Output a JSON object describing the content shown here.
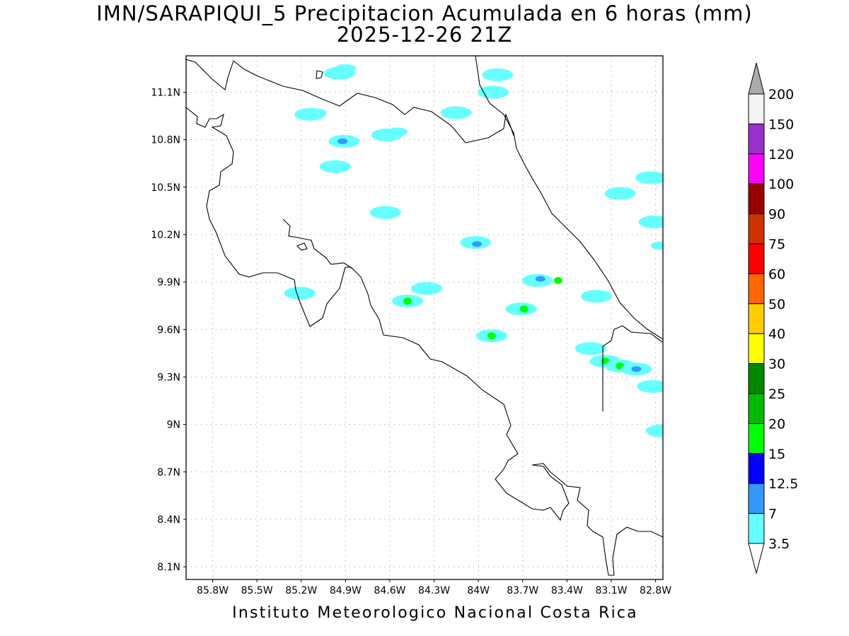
{
  "header": {
    "title_line1": "IMN/SARAPIQUI_5 Precipitacion Acumulada en 6 horas (mm)",
    "title_line2": "2025-12-26 21Z"
  },
  "footer": {
    "credit": "Instituto Meteorologico Nacional Costa Rica"
  },
  "map": {
    "lon_range": [
      -85.98,
      -82.75
    ],
    "lat_range": [
      8.02,
      11.33
    ],
    "lat_ticks": [
      "11.1N",
      "10.8N",
      "10.5N",
      "10.2N",
      "9.9N",
      "9.6N",
      "9.3N",
      "9N",
      "8.7N",
      "8.4N",
      "8.1N"
    ],
    "lon_ticks": [
      "85.8W",
      "85.5W",
      "85.2W",
      "84.9W",
      "84.6W",
      "84.3W",
      "84W",
      "83.7W",
      "83.4W",
      "83.1W",
      "82.8W"
    ],
    "grid": "dotted"
  },
  "legend": {
    "labels": [
      "200",
      "150",
      "120",
      "100",
      "90",
      "75",
      "60",
      "50",
      "40",
      "30",
      "25",
      "20",
      "15",
      "12.5",
      "7",
      "3.5"
    ],
    "colors": [
      "#f4f4f4",
      "#9932cc",
      "#ff00ff",
      "#990000",
      "#cc3300",
      "#ff0000",
      "#ff6600",
      "#ffcc00",
      "#ffff00",
      "#008800",
      "#00bb00",
      "#00ff00",
      "#0000ff",
      "#3399ff",
      "#66ffff"
    ],
    "over_color": "#aaaaaa",
    "under_color": "#ffffff"
  },
  "precip_cells": [
    {
      "lon": -84.94,
      "lat": 11.22,
      "level": "3.5"
    },
    {
      "lon": -84.9,
      "lat": 11.25,
      "level": "7"
    },
    {
      "lon": -83.87,
      "lat": 11.21,
      "level": "3.5"
    },
    {
      "lon": -83.9,
      "lat": 11.1,
      "level": "3.5"
    },
    {
      "lon": -85.14,
      "lat": 10.96,
      "level": "3.5"
    },
    {
      "lon": -85.1,
      "lat": 10.97,
      "level": "7"
    },
    {
      "lon": -84.91,
      "lat": 10.79,
      "level": "3.5"
    },
    {
      "lon": -84.92,
      "lat": 10.79,
      "level": "12.5"
    },
    {
      "lon": -84.62,
      "lat": 10.83,
      "level": "3.5"
    },
    {
      "lon": -84.55,
      "lat": 10.85,
      "level": "7"
    },
    {
      "lon": -84.15,
      "lat": 10.97,
      "level": "3.5"
    },
    {
      "lon": -84.97,
      "lat": 10.63,
      "level": "3.5"
    },
    {
      "lon": -84.63,
      "lat": 10.34,
      "level": "3.5"
    },
    {
      "lon": -83.04,
      "lat": 10.46,
      "level": "3.5"
    },
    {
      "lon": -82.83,
      "lat": 10.56,
      "level": "3.5"
    },
    {
      "lon": -82.81,
      "lat": 10.28,
      "level": "3.5"
    },
    {
      "lon": -82.76,
      "lat": 10.13,
      "level": "7"
    },
    {
      "lon": -84.02,
      "lat": 10.15,
      "level": "3.5"
    },
    {
      "lon": -84.01,
      "lat": 10.14,
      "level": "12.5"
    },
    {
      "lon": -83.6,
      "lat": 9.91,
      "level": "3.5"
    },
    {
      "lon": -83.58,
      "lat": 9.92,
      "level": "12.5"
    },
    {
      "lon": -83.46,
      "lat": 9.91,
      "level": "20"
    },
    {
      "lon": -83.71,
      "lat": 9.73,
      "level": "3.5"
    },
    {
      "lon": -83.69,
      "lat": 9.73,
      "level": "20"
    },
    {
      "lon": -84.48,
      "lat": 9.78,
      "level": "3.5"
    },
    {
      "lon": -84.48,
      "lat": 9.78,
      "level": "20"
    },
    {
      "lon": -84.35,
      "lat": 9.86,
      "level": "3.5"
    },
    {
      "lon": -85.21,
      "lat": 9.83,
      "level": "3.5"
    },
    {
      "lon": -83.91,
      "lat": 9.56,
      "level": "3.5"
    },
    {
      "lon": -83.91,
      "lat": 9.56,
      "level": "20"
    },
    {
      "lon": -83.2,
      "lat": 9.81,
      "level": "3.5"
    },
    {
      "lon": -83.24,
      "lat": 9.48,
      "level": "3.5"
    },
    {
      "lon": -83.14,
      "lat": 9.4,
      "level": "3.5"
    },
    {
      "lon": -83.14,
      "lat": 9.4,
      "level": "20"
    },
    {
      "lon": -83.04,
      "lat": 9.37,
      "level": "3.5"
    },
    {
      "lon": -83.04,
      "lat": 9.37,
      "level": "20"
    },
    {
      "lon": -82.93,
      "lat": 9.35,
      "level": "3.5"
    },
    {
      "lon": -82.93,
      "lat": 9.35,
      "level": "12.5"
    },
    {
      "lon": -82.82,
      "lat": 9.24,
      "level": "3.5"
    },
    {
      "lon": -82.76,
      "lat": 8.96,
      "level": "3.5"
    }
  ]
}
